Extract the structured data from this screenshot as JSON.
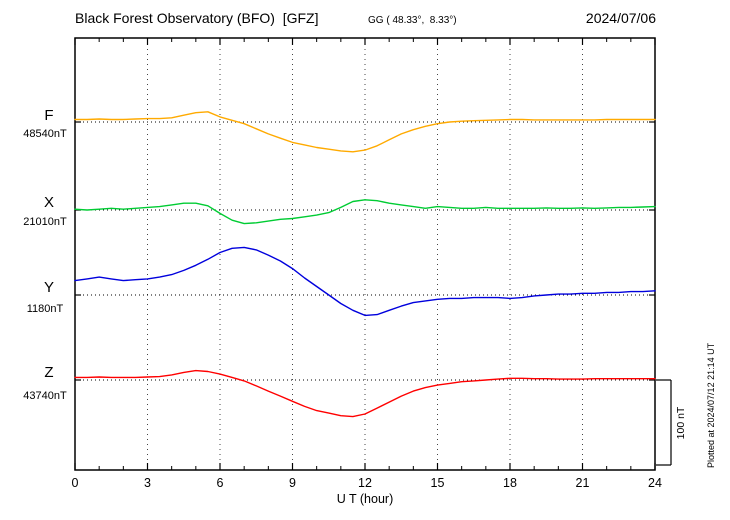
{
  "header": {
    "title": "Black Forest Observatory (BFO)  [GFZ]",
    "coordinates": "GG ( 48.33°,  8.33°)",
    "date": "2024/07/06"
  },
  "axes": {
    "xlabel": "U T (hour)",
    "xmin": 0,
    "xmax": 24,
    "xticks": [
      0,
      3,
      6,
      9,
      12,
      15,
      18,
      21,
      24
    ]
  },
  "scale_bar": {
    "label": "100 nT",
    "span_nT": 100
  },
  "side_note": "Plotted at 2024/07/12 21:14 UT",
  "chart_data": {
    "type": "line",
    "title": "Black Forest Observatory (BFO) magnetogram for 2024/07/06",
    "xlabel": "U T (hour)",
    "xlim": [
      0,
      24
    ],
    "x_start": 0,
    "x_step": 0.5,
    "grid": "dotted vertical lines every 3 h; dotted horizontal baseline per component",
    "scale_reference": "100 nT vertical bar at lower right",
    "series": [
      {
        "name": "F",
        "label": "F",
        "baseline_label": "48540nT",
        "baseline_nT": 48540,
        "unit": "nT",
        "color": "#ffaa00",
        "values_offset_nT": [
          3,
          3,
          3.5,
          3,
          3,
          3.5,
          4,
          4,
          5,
          8,
          11,
          12,
          6,
          2,
          -2,
          -8,
          -14,
          -19,
          -24,
          -27,
          -30,
          -32,
          -34,
          -35,
          -33,
          -28,
          -21,
          -14,
          -9,
          -5,
          -2,
          0,
          1,
          1.5,
          2,
          2.5,
          3,
          3,
          2.5,
          2.5,
          2.5,
          2.5,
          2.5,
          2.5,
          3,
          3,
          3,
          3,
          3
        ]
      },
      {
        "name": "X",
        "label": "X",
        "baseline_label": "21010nT",
        "baseline_nT": 21010,
        "unit": "nT",
        "color": "#00cc33",
        "values_offset_nT": [
          1,
          0,
          1,
          2,
          1,
          2,
          3,
          4,
          6,
          8,
          8,
          5,
          -4,
          -12,
          -16,
          -15,
          -13,
          -11,
          -10,
          -8,
          -6,
          -3,
          3,
          10,
          12,
          11,
          8,
          6,
          4,
          2,
          4,
          3,
          2,
          2,
          3,
          2,
          2,
          2,
          2,
          2.5,
          2,
          2,
          2.5,
          2,
          2.5,
          3,
          3,
          3.5,
          4
        ]
      },
      {
        "name": "Y",
        "label": "Y",
        "baseline_label": "1180nT",
        "baseline_nT": 1180,
        "unit": "nT",
        "color": "#0000dd",
        "values_offset_nT": [
          17,
          19,
          21,
          19,
          17,
          18,
          19,
          21,
          24,
          29,
          35,
          42,
          50,
          55,
          56,
          53,
          47,
          40,
          31,
          20,
          10,
          0,
          -10,
          -18,
          -24,
          -23,
          -18,
          -13,
          -9,
          -7,
          -5,
          -4,
          -4,
          -3,
          -3,
          -3,
          -4,
          -3,
          -1,
          0,
          1,
          1,
          2,
          2,
          3,
          3,
          4,
          4,
          5
        ]
      },
      {
        "name": "Z",
        "label": "Z",
        "baseline_label": "43740nT",
        "baseline_nT": 43740,
        "unit": "nT",
        "color": "#ff0000",
        "values_offset_nT": [
          3,
          3,
          3.5,
          3,
          3,
          3,
          3.5,
          4,
          6,
          9,
          11,
          10,
          7,
          3,
          -1,
          -7,
          -13,
          -19,
          -25,
          -31,
          -36,
          -39,
          -42,
          -43,
          -40,
          -33,
          -26,
          -19,
          -13,
          -9,
          -6,
          -4,
          -2,
          -1,
          0,
          1,
          2,
          2,
          1.5,
          1.5,
          1,
          1,
          1,
          1.5,
          1.5,
          1.5,
          1.5,
          1.5,
          1.5
        ]
      }
    ]
  }
}
